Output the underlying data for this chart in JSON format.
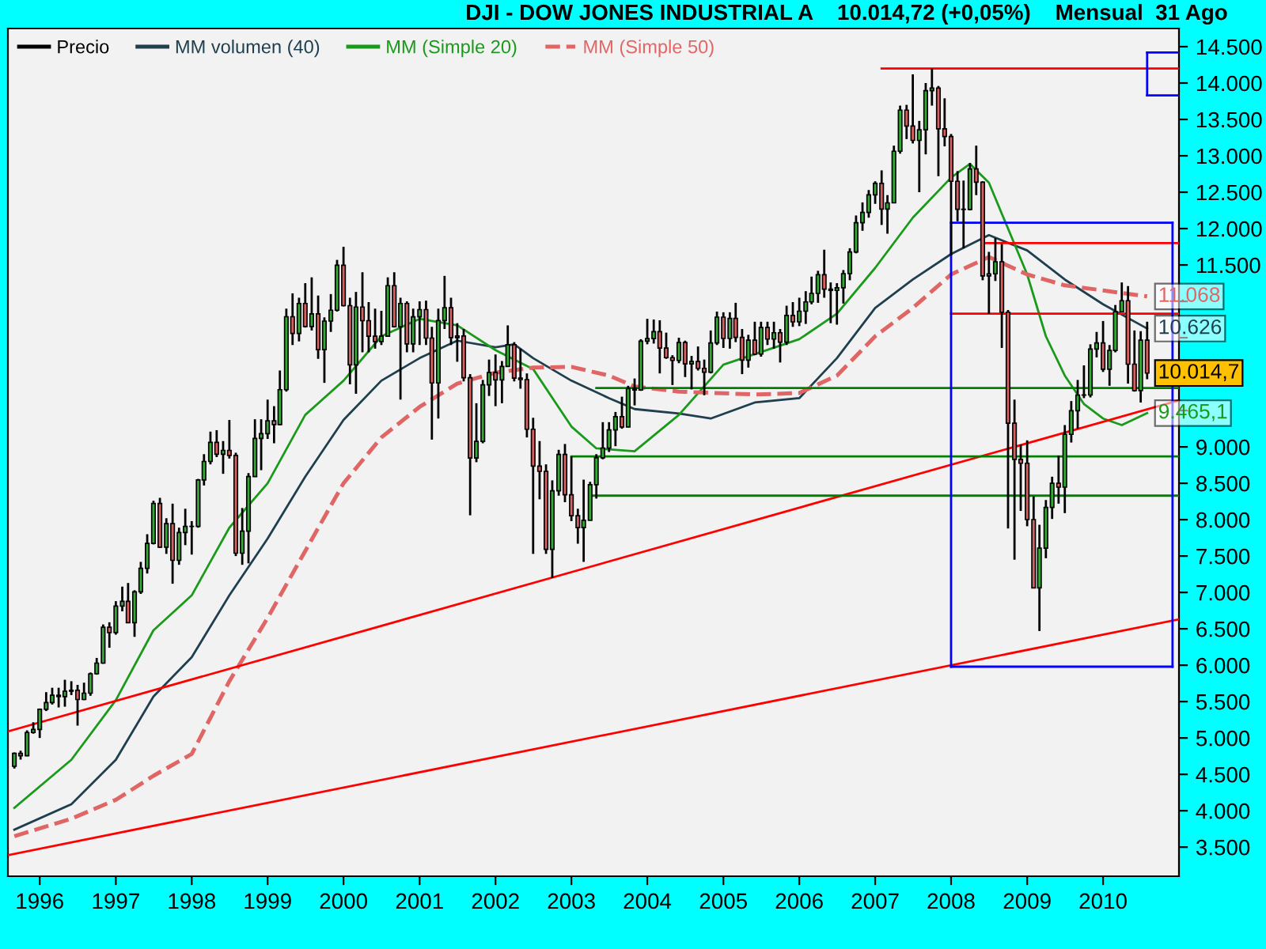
{
  "chart_data": {
    "type": "candlestick",
    "title": "DJI - DOW JONES INDUSTRIAL A    10.014,72 (+0,05%)    Mensual  31 Ago",
    "legend": "top left",
    "xlim": [
      "1995-08-01",
      "2011-01-01"
    ],
    "xticks": [
      {
        "value": "1996-01-01",
        "label": "1996"
      },
      {
        "value": "1997-01-01",
        "label": "1997"
      },
      {
        "value": "1998-01-01",
        "label": "1998"
      },
      {
        "value": "1999-01-01",
        "label": "1999"
      },
      {
        "value": "2000-01-01",
        "label": "2000"
      },
      {
        "value": "2001-01-01",
        "label": "2001"
      },
      {
        "value": "2002-01-01",
        "label": "2002"
      },
      {
        "value": "2003-01-01",
        "label": "2003"
      },
      {
        "value": "2004-01-01",
        "label": "2004"
      },
      {
        "value": "2005-01-01",
        "label": "2005"
      },
      {
        "value": "2006-01-01",
        "label": "2006"
      },
      {
        "value": "2007-01-01",
        "label": "2007"
      },
      {
        "value": "2008-01-01",
        "label": "2008"
      },
      {
        "value": "2009-01-01",
        "label": "2009"
      },
      {
        "value": "2010-01-01",
        "label": "2010"
      }
    ],
    "ylim": [
      3100,
      14750
    ],
    "yticks": [
      {
        "value": 14500,
        "label": "14.500"
      },
      {
        "value": 14000,
        "label": "14.000"
      },
      {
        "value": 13500,
        "label": "13.500"
      },
      {
        "value": 13000,
        "label": "13.000"
      },
      {
        "value": 12500,
        "label": "12.500"
      },
      {
        "value": 12000,
        "label": "12.000"
      },
      {
        "value": 11500,
        "label": "11.500"
      },
      {
        "value": 11000,
        "label": null
      },
      {
        "value": 10500,
        "label": null
      },
      {
        "value": 10000,
        "label": null
      },
      {
        "value": 9500,
        "label": null
      },
      {
        "value": 9000,
        "label": "9.000"
      },
      {
        "value": 8500,
        "label": "8.500"
      },
      {
        "value": 8000,
        "label": "8.000"
      },
      {
        "value": 7500,
        "label": "7.500"
      },
      {
        "value": 7000,
        "label": "7.000"
      },
      {
        "value": 6500,
        "label": "6.500"
      },
      {
        "value": 6000,
        "label": "6.000"
      },
      {
        "value": 5500,
        "label": "5.500"
      },
      {
        "value": 5000,
        "label": "5.000"
      },
      {
        "value": 4500,
        "label": "4.500"
      },
      {
        "value": 4000,
        "label": "4.000"
      },
      {
        "value": 3500,
        "label": "3.500"
      }
    ],
    "series": [
      {
        "type": "candlestick",
        "name": "Precio",
        "color": "#000000",
        "x": [
          "1995-09",
          "1995-10",
          "1995-11",
          "1995-12",
          "1996-01",
          "1996-02",
          "1996-03",
          "1996-04",
          "1996-05",
          "1996-06",
          "1996-07",
          "1996-08",
          "1996-09",
          "1996-10",
          "1996-11",
          "1996-12",
          "1997-01",
          "1997-02",
          "1997-03",
          "1997-04",
          "1997-05",
          "1997-06",
          "1997-07",
          "1997-08",
          "1997-09",
          "1997-10",
          "1997-11",
          "1997-12",
          "1998-01",
          "1998-02",
          "1998-03",
          "1998-04",
          "1998-05",
          "1998-06",
          "1998-07",
          "1998-08",
          "1998-09",
          "1998-10",
          "1998-11",
          "1998-12",
          "1999-01",
          "1999-02",
          "1999-03",
          "1999-04",
          "1999-05",
          "1999-06",
          "1999-07",
          "1999-08",
          "1999-09",
          "1999-10",
          "1999-11",
          "1999-12",
          "2000-01",
          "2000-02",
          "2000-03",
          "2000-04",
          "2000-05",
          "2000-06",
          "2000-07",
          "2000-08",
          "2000-09",
          "2000-10",
          "2000-11",
          "2000-12",
          "2001-01",
          "2001-02",
          "2001-03",
          "2001-04",
          "2001-05",
          "2001-06",
          "2001-07",
          "2001-08",
          "2001-09",
          "2001-10",
          "2001-11",
          "2001-12",
          "2002-01",
          "2002-02",
          "2002-03",
          "2002-04",
          "2002-05",
          "2002-06",
          "2002-07",
          "2002-08",
          "2002-09",
          "2002-10",
          "2002-11",
          "2002-12",
          "2003-01",
          "2003-02",
          "2003-03",
          "2003-04",
          "2003-05",
          "2003-06",
          "2003-07",
          "2003-08",
          "2003-09",
          "2003-10",
          "2003-11",
          "2003-12",
          "2004-01",
          "2004-02",
          "2004-03",
          "2004-04",
          "2004-05",
          "2004-06",
          "2004-07",
          "2004-08",
          "2004-09",
          "2004-10",
          "2004-11",
          "2004-12",
          "2005-01",
          "2005-02",
          "2005-03",
          "2005-04",
          "2005-05",
          "2005-06",
          "2005-07",
          "2005-08",
          "2005-09",
          "2005-10",
          "2005-11",
          "2005-12",
          "2006-01",
          "2006-02",
          "2006-03",
          "2006-04",
          "2006-05",
          "2006-06",
          "2006-07",
          "2006-08",
          "2006-09",
          "2006-10",
          "2006-11",
          "2006-12",
          "2007-01",
          "2007-02",
          "2007-03",
          "2007-04",
          "2007-05",
          "2007-06",
          "2007-07",
          "2007-08",
          "2007-09",
          "2007-10",
          "2007-11",
          "2007-12",
          "2008-01",
          "2008-02",
          "2008-03",
          "2008-04",
          "2008-05",
          "2008-06",
          "2008-07",
          "2008-08",
          "2008-09",
          "2008-10",
          "2008-11",
          "2008-12",
          "2009-01",
          "2009-02",
          "2009-03",
          "2009-04",
          "2009-05",
          "2009-06",
          "2009-07",
          "2009-08",
          "2009-09",
          "2009-10",
          "2009-11",
          "2009-12",
          "2010-01",
          "2010-02",
          "2010-03",
          "2010-04",
          "2010-05",
          "2010-06",
          "2010-07",
          "2010-08"
        ],
        "ohlc": [
          [
            4611,
            4801,
            4580,
            4789
          ],
          [
            4789,
            4825,
            4703,
            4756
          ],
          [
            4756,
            5105,
            4750,
            5075
          ],
          [
            5075,
            5216,
            5059,
            5117
          ],
          [
            5117,
            5405,
            5000,
            5395
          ],
          [
            5395,
            5630,
            5370,
            5486
          ],
          [
            5486,
            5690,
            5460,
            5587
          ],
          [
            5587,
            5690,
            5420,
            5569
          ],
          [
            5569,
            5800,
            5430,
            5643
          ],
          [
            5643,
            5780,
            5590,
            5655
          ],
          [
            5655,
            5730,
            5170,
            5529
          ],
          [
            5529,
            5760,
            5520,
            5616
          ],
          [
            5616,
            5900,
            5580,
            5882
          ],
          [
            5882,
            6100,
            5870,
            6029
          ],
          [
            6029,
            6560,
            6020,
            6522
          ],
          [
            6522,
            6590,
            6240,
            6448
          ],
          [
            6448,
            6880,
            6420,
            6813
          ],
          [
            6813,
            7080,
            6740,
            6878
          ],
          [
            6878,
            7130,
            6580,
            6584
          ],
          [
            6584,
            7030,
            6390,
            7009
          ],
          [
            7009,
            7420,
            6980,
            7331
          ],
          [
            7331,
            7800,
            7260,
            7673
          ],
          [
            7673,
            8260,
            7660,
            8223
          ],
          [
            8223,
            8300,
            7610,
            7622
          ],
          [
            7622,
            8020,
            7530,
            7945
          ],
          [
            7945,
            8220,
            7120,
            7442
          ],
          [
            7442,
            7890,
            7380,
            7823
          ],
          [
            7823,
            8150,
            7650,
            7908
          ],
          [
            7908,
            7980,
            7520,
            7907
          ],
          [
            7907,
            8560,
            7890,
            8546
          ],
          [
            8546,
            8900,
            8470,
            8800
          ],
          [
            8800,
            9210,
            8760,
            9063
          ],
          [
            9063,
            9230,
            8860,
            8900
          ],
          [
            8900,
            9080,
            8630,
            8952
          ],
          [
            8952,
            9370,
            8840,
            8883
          ],
          [
            8883,
            8920,
            7500,
            7539
          ],
          [
            7539,
            8160,
            7380,
            7843
          ],
          [
            7843,
            8640,
            7400,
            8592
          ],
          [
            8592,
            9380,
            8590,
            9117
          ],
          [
            9117,
            9380,
            8680,
            9181
          ],
          [
            9181,
            9650,
            9110,
            9359
          ],
          [
            9359,
            9560,
            9050,
            9307
          ],
          [
            9307,
            10050,
            9300,
            9786
          ],
          [
            9786,
            10900,
            9760,
            10789
          ],
          [
            10789,
            11110,
            10400,
            10560
          ],
          [
            10560,
            11050,
            10450,
            10971
          ],
          [
            10971,
            11250,
            10640,
            10655
          ],
          [
            10655,
            11330,
            10600,
            10829
          ],
          [
            10829,
            11080,
            10210,
            10337
          ],
          [
            10337,
            10780,
            9880,
            10729
          ],
          [
            10729,
            11100,
            10580,
            10878
          ],
          [
            10878,
            11570,
            10860,
            11497
          ],
          [
            11497,
            11750,
            10930,
            10941
          ],
          [
            10941,
            11050,
            9860,
            10128
          ],
          [
            10128,
            11130,
            9730,
            10922
          ],
          [
            10922,
            11400,
            10300,
            10734
          ],
          [
            10734,
            10990,
            10300,
            10522
          ],
          [
            10522,
            10900,
            10350,
            10448
          ],
          [
            10448,
            10870,
            10400,
            10522
          ],
          [
            10522,
            11330,
            10520,
            11215
          ],
          [
            11215,
            11400,
            10640,
            10651
          ],
          [
            10651,
            11050,
            9650,
            10971
          ],
          [
            10971,
            11000,
            10300,
            10415
          ],
          [
            10415,
            10900,
            10300,
            10787
          ],
          [
            10787,
            11000,
            10400,
            10887
          ],
          [
            10887,
            11010,
            10400,
            10495
          ],
          [
            10495,
            10650,
            9100,
            9879
          ],
          [
            9879,
            10900,
            9390,
            10735
          ],
          [
            10735,
            11350,
            10620,
            10912
          ],
          [
            10912,
            11050,
            10400,
            10502
          ],
          [
            10502,
            10700,
            10170,
            10523
          ],
          [
            10523,
            10620,
            9900,
            9950
          ],
          [
            9950,
            10000,
            8060,
            8848
          ],
          [
            8848,
            9600,
            8790,
            9075
          ],
          [
            9075,
            9920,
            9050,
            9852
          ],
          [
            9852,
            10200,
            9700,
            10021
          ],
          [
            10021,
            10270,
            9560,
            9920
          ],
          [
            9920,
            10180,
            9600,
            10106
          ],
          [
            10106,
            10670,
            10100,
            10404
          ],
          [
            10404,
            10440,
            9900,
            9946
          ],
          [
            9946,
            10350,
            9800,
            9925
          ],
          [
            9925,
            10010,
            9130,
            9243
          ],
          [
            9243,
            9400,
            7530,
            8737
          ],
          [
            8737,
            9080,
            8280,
            8664
          ],
          [
            8664,
            8760,
            7530,
            7592
          ],
          [
            7592,
            8540,
            7200,
            8397
          ],
          [
            8397,
            8960,
            8330,
            8896
          ],
          [
            8896,
            9040,
            8240,
            8342
          ],
          [
            8342,
            8870,
            7980,
            8054
          ],
          [
            8054,
            8150,
            7670,
            7891
          ],
          [
            7891,
            8550,
            7420,
            7992
          ],
          [
            7992,
            8520,
            7990,
            8480
          ],
          [
            8480,
            8900,
            8290,
            8850
          ],
          [
            8850,
            9340,
            8830,
            8985
          ],
          [
            8985,
            9340,
            8930,
            9234
          ],
          [
            9234,
            9480,
            9010,
            9415
          ],
          [
            9415,
            9690,
            9250,
            9275
          ],
          [
            9275,
            9840,
            9270,
            9801
          ],
          [
            9801,
            9940,
            9570,
            9782
          ],
          [
            9782,
            10480,
            9770,
            10454
          ],
          [
            10454,
            10760,
            10410,
            10488
          ],
          [
            10488,
            10750,
            10420,
            10584
          ],
          [
            10584,
            10740,
            10010,
            10358
          ],
          [
            10358,
            10570,
            10210,
            10226
          ],
          [
            10226,
            10260,
            9850,
            10188
          ],
          [
            10188,
            10500,
            10150,
            10435
          ],
          [
            10435,
            10460,
            9960,
            10140
          ],
          [
            10140,
            10250,
            9790,
            10174
          ],
          [
            10174,
            10380,
            10050,
            10080
          ],
          [
            10080,
            10200,
            9710,
            10027
          ],
          [
            10027,
            10600,
            10010,
            10428
          ],
          [
            10428,
            10860,
            10400,
            10783
          ],
          [
            10783,
            10850,
            10360,
            10490
          ],
          [
            10490,
            10850,
            10350,
            10766
          ],
          [
            10766,
            10980,
            10440,
            10504
          ],
          [
            10504,
            10620,
            10000,
            10193
          ],
          [
            10193,
            10540,
            10090,
            10467
          ],
          [
            10467,
            10720,
            10260,
            10275
          ],
          [
            10275,
            10720,
            10240,
            10641
          ],
          [
            10641,
            10720,
            10400,
            10482
          ],
          [
            10482,
            10720,
            10350,
            10569
          ],
          [
            10569,
            10620,
            10160,
            10440
          ],
          [
            10440,
            10940,
            10400,
            10806
          ],
          [
            10806,
            10990,
            10650,
            10718
          ],
          [
            10718,
            11050,
            10660,
            10865
          ],
          [
            10865,
            11140,
            10690,
            10993
          ],
          [
            10993,
            11340,
            10960,
            11109
          ],
          [
            11109,
            11420,
            10980,
            11367
          ],
          [
            11367,
            11710,
            11050,
            11168
          ],
          [
            11168,
            11260,
            10700,
            11150
          ],
          [
            11150,
            11250,
            10680,
            11186
          ],
          [
            11186,
            11430,
            10970,
            11381
          ],
          [
            11381,
            11730,
            11290,
            11679
          ],
          [
            11679,
            12180,
            11660,
            12081
          ],
          [
            12081,
            12360,
            11970,
            12222
          ],
          [
            12222,
            12530,
            12150,
            12463
          ],
          [
            12463,
            12650,
            12340,
            12622
          ],
          [
            12622,
            12800,
            12050,
            12269
          ],
          [
            12269,
            12460,
            11930,
            12354
          ],
          [
            12354,
            13140,
            12350,
            13063
          ],
          [
            13063,
            13690,
            13030,
            13628
          ],
          [
            13628,
            13700,
            13230,
            13409
          ],
          [
            13409,
            14120,
            13170,
            13212
          ],
          [
            13212,
            13480,
            12500,
            13358
          ],
          [
            13358,
            14000,
            13020,
            13896
          ],
          [
            13896,
            14200,
            13690,
            13930
          ],
          [
            13930,
            13960,
            12720,
            13372
          ],
          [
            13372,
            13790,
            13130,
            13265
          ],
          [
            13265,
            13300,
            11630,
            12650
          ],
          [
            12650,
            12790,
            12100,
            12266
          ],
          [
            12266,
            12660,
            11730,
            12263
          ],
          [
            12263,
            12900,
            12250,
            12820
          ],
          [
            12820,
            13140,
            12460,
            12638
          ],
          [
            12638,
            12650,
            11290,
            11350
          ],
          [
            11350,
            11680,
            10830,
            11378
          ],
          [
            11378,
            11870,
            11280,
            11544
          ],
          [
            11544,
            11790,
            10360,
            10851
          ],
          [
            10851,
            10880,
            7880,
            9325
          ],
          [
            9325,
            9650,
            7450,
            8829
          ],
          [
            8829,
            9030,
            8120,
            8776
          ],
          [
            8776,
            9090,
            7910,
            8001
          ],
          [
            8001,
            8320,
            7060,
            7063
          ],
          [
            7063,
            7930,
            6470,
            7609
          ],
          [
            7609,
            8270,
            7470,
            8168
          ],
          [
            8168,
            8590,
            8010,
            8500
          ],
          [
            8500,
            8880,
            8220,
            8447
          ],
          [
            8447,
            9300,
            8090,
            9172
          ],
          [
            9172,
            9630,
            9060,
            9496
          ],
          [
            9496,
            9920,
            9250,
            9712
          ],
          [
            9712,
            10120,
            9670,
            9713
          ],
          [
            9713,
            10410,
            9680,
            10345
          ],
          [
            10345,
            10580,
            10230,
            10428
          ],
          [
            10428,
            10730,
            10030,
            10067
          ],
          [
            10067,
            10400,
            9840,
            10325
          ],
          [
            10325,
            10950,
            10300,
            10857
          ],
          [
            10857,
            11260,
            10850,
            11009
          ],
          [
            11009,
            11210,
            9870,
            10137
          ],
          [
            10137,
            10600,
            9760,
            9774
          ],
          [
            9774,
            10590,
            9610,
            10466
          ],
          [
            10466,
            10720,
            9930,
            10014.7
          ]
        ],
        "value_labels": [
          null,
          null,
          null,
          null,
          null,
          null,
          null,
          null,
          null,
          null,
          null,
          null,
          null,
          null,
          null,
          null,
          null,
          null,
          null,
          null,
          null,
          null,
          null,
          null,
          null,
          null,
          null,
          null,
          null,
          null,
          null,
          null,
          null,
          null,
          null,
          null,
          null,
          null,
          null,
          null,
          null,
          null,
          null,
          null,
          null,
          null,
          null,
          null,
          null,
          null,
          null,
          null,
          null,
          null,
          null,
          null,
          null,
          null,
          null,
          null,
          null,
          null,
          null,
          null,
          null,
          null,
          null,
          null,
          null,
          null,
          null,
          null,
          null,
          null,
          null,
          null,
          null,
          null,
          null,
          null,
          null,
          null,
          null,
          null,
          null,
          null,
          null,
          null,
          null,
          null,
          null,
          null,
          null,
          null,
          null,
          null,
          null,
          null,
          null,
          null,
          null,
          null,
          null,
          null,
          null,
          null,
          null,
          null,
          null,
          null,
          null,
          null,
          null,
          null,
          null,
          null,
          null,
          null,
          null,
          null,
          null,
          null,
          null,
          null,
          null,
          null,
          null,
          null,
          null,
          null,
          null,
          null,
          null,
          null,
          null,
          null,
          null,
          null,
          null,
          null,
          null,
          null,
          null,
          null,
          null,
          null,
          null,
          null,
          null,
          null,
          null,
          null,
          null,
          null,
          null,
          null,
          null,
          null,
          null,
          null,
          null,
          null,
          null,
          null,
          null,
          null,
          null,
          null,
          null,
          null,
          null,
          null,
          null,
          null,
          null,
          null,
          null,
          null,
          null,
          "10.014,7"
        ]
      },
      {
        "type": "line",
        "name": "MM volumen (40)",
        "color": "#1f3f4f",
        "line_style": "solid",
        "x": [
          "1995-09",
          "1996-06",
          "1997-01",
          "1997-07",
          "1998-01",
          "1998-07",
          "1999-01",
          "1999-07",
          "2000-01",
          "2000-07",
          "2001-01",
          "2001-07",
          "2002-01",
          "2002-04",
          "2002-07",
          "2003-01",
          "2003-07",
          "2003-11",
          "2004-06",
          "2004-11",
          "2005-06",
          "2006-01",
          "2006-07",
          "2007-01",
          "2007-07",
          "2008-01",
          "2008-07",
          "2009-01",
          "2009-07",
          "2010-01",
          "2010-08"
        ],
        "values": [
          3740,
          4090,
          4700,
          5570,
          6110,
          6960,
          7740,
          8590,
          9370,
          9910,
          10220,
          10460,
          10370,
          10410,
          10220,
          9910,
          9670,
          9520,
          9460,
          9390,
          9610,
          9670,
          10220,
          10910,
          11300,
          11650,
          11910,
          11700,
          11300,
          10960,
          10626
        ],
        "value_labels": [
          null,
          null,
          null,
          null,
          null,
          null,
          null,
          null,
          null,
          null,
          null,
          null,
          null,
          null,
          null,
          null,
          null,
          null,
          null,
          null,
          null,
          null,
          null,
          null,
          null,
          null,
          null,
          null,
          null,
          null,
          "10.626"
        ]
      },
      {
        "type": "line",
        "name": "MM (Simple 20)",
        "color": "#1a9a1a",
        "line_style": "solid",
        "x": [
          "1995-09",
          "1996-06",
          "1997-01",
          "1997-07",
          "1998-01",
          "1998-07",
          "1999-01",
          "1999-07",
          "2000-01",
          "2000-07",
          "2001-01",
          "2001-07",
          "2002-01",
          "2002-07",
          "2003-01",
          "2003-05",
          "2003-11",
          "2004-06",
          "2005-01",
          "2006-01",
          "2006-07",
          "2007-01",
          "2007-07",
          "2008-01",
          "2008-04",
          "2008-07",
          "2008-10",
          "2009-01",
          "2009-04",
          "2009-07",
          "2009-10",
          "2010-01",
          "2010-04",
          "2010-08"
        ],
        "values": [
          4040,
          4700,
          5520,
          6480,
          6960,
          7890,
          8500,
          9440,
          9910,
          10520,
          10760,
          10670,
          10330,
          10070,
          9280,
          8980,
          8940,
          9440,
          10130,
          10480,
          10830,
          11460,
          12150,
          12700,
          12890,
          12630,
          12000,
          11370,
          10520,
          9980,
          9590,
          9390,
          9300,
          9465.1
        ],
        "value_labels": [
          null,
          null,
          null,
          null,
          null,
          null,
          null,
          null,
          null,
          null,
          null,
          null,
          null,
          null,
          null,
          null,
          null,
          null,
          null,
          null,
          null,
          null,
          null,
          null,
          null,
          null,
          null,
          null,
          null,
          null,
          null,
          null,
          null,
          "9.465,1"
        ]
      },
      {
        "type": "line",
        "name": "MM (Simple 50)",
        "color": "#e06666",
        "line_style": "dashed",
        "x": [
          "1995-09",
          "1996-06",
          "1997-01",
          "1997-07",
          "1998-01",
          "1998-07",
          "1999-01",
          "1999-07",
          "2000-01",
          "2000-07",
          "2001-01",
          "2001-07",
          "2002-01",
          "2002-07",
          "2003-01",
          "2003-07",
          "2003-11",
          "2004-06",
          "2005-06",
          "2006-01",
          "2006-07",
          "2007-01",
          "2007-07",
          "2008-01",
          "2008-07",
          "2009-01",
          "2009-07",
          "2010-01",
          "2010-08"
        ],
        "values": [
          3650,
          3890,
          4150,
          4480,
          4780,
          5780,
          6650,
          7570,
          8500,
          9130,
          9550,
          9870,
          10020,
          10090,
          10100,
          9980,
          9830,
          9760,
          9720,
          9740,
          9980,
          10520,
          10910,
          11370,
          11610,
          11370,
          11220,
          11150,
          11068
        ],
        "value_labels": [
          null,
          null,
          null,
          null,
          null,
          null,
          null,
          null,
          null,
          null,
          null,
          null,
          null,
          null,
          null,
          null,
          null,
          null,
          null,
          null,
          null,
          null,
          null,
          null,
          null,
          null,
          null,
          null,
          "11.068"
        ]
      },
      {
        "type": "line",
        "color": "#ff0000",
        "line_style": "solid",
        "x": [
          "1995-08",
          "2011-01"
        ],
        "values": [
          5090,
          9640
        ]
      },
      {
        "type": "line",
        "color": "#ff0000",
        "line_style": "solid",
        "x": [
          "1995-08",
          "2011-01"
        ],
        "values": [
          3390,
          6630
        ]
      },
      {
        "type": "line",
        "color": "#ff0000",
        "line_style": "solid",
        "x": [
          "2007-02",
          "2011-01"
        ],
        "values": [
          14200,
          14200
        ]
      },
      {
        "type": "line",
        "color": "#ff0000",
        "line_style": "solid",
        "x": [
          "2008-06",
          "2011-01"
        ],
        "values": [
          11800,
          11800
        ]
      },
      {
        "type": "line",
        "color": "#ff0000",
        "line_style": "solid",
        "x": [
          "2008-01",
          "2011-01"
        ],
        "values": [
          10830,
          10830
        ]
      },
      {
        "type": "line",
        "color": "#008000",
        "line_style": "solid",
        "x": [
          "2003-05",
          "2011-01"
        ],
        "values": [
          9810,
          9810
        ]
      },
      {
        "type": "line",
        "color": "#008000",
        "line_style": "solid",
        "x": [
          "2003-01",
          "2011-01"
        ],
        "values": [
          8870,
          8870
        ]
      },
      {
        "type": "line",
        "color": "#008000",
        "line_style": "solid",
        "x": [
          "2003-04",
          "2011-01"
        ],
        "values": [
          8330,
          8330
        ]
      },
      {
        "type": "line",
        "color": "#0000ff",
        "line_style": "solid",
        "x": [
          "2008-01",
          "2010-12"
        ],
        "values": [
          12080,
          12080
        ]
      },
      {
        "type": "line",
        "color": "#0000ff",
        "line_style": "solid",
        "x": [
          "2008-01",
          "2010-12"
        ],
        "values": [
          5980,
          5980
        ]
      },
      {
        "type": "line",
        "color": "#0000ff",
        "line_style": "solid",
        "x": [
          "2008-01",
          "2008-01"
        ],
        "values": [
          5980,
          12080
        ]
      },
      {
        "type": "line",
        "color": "#0000ff",
        "line_style": "solid",
        "x": [
          "2010-12",
          "2010-12"
        ],
        "values": [
          5980,
          12080
        ]
      },
      {
        "type": "line",
        "color": "#0000ff",
        "line_style": "solid",
        "x": [
          "2010-08",
          "2011-01"
        ],
        "values": [
          14420,
          14420
        ]
      },
      {
        "type": "line",
        "color": "#0000ff",
        "line_style": "solid",
        "x": [
          "2010-08",
          "2011-01"
        ],
        "values": [
          13830,
          13830
        ]
      },
      {
        "type": "line",
        "color": "#0000ff",
        "line_style": "solid",
        "x": [
          "2010-08",
          "2010-08"
        ],
        "values": [
          13830,
          14420
        ]
      }
    ]
  }
}
